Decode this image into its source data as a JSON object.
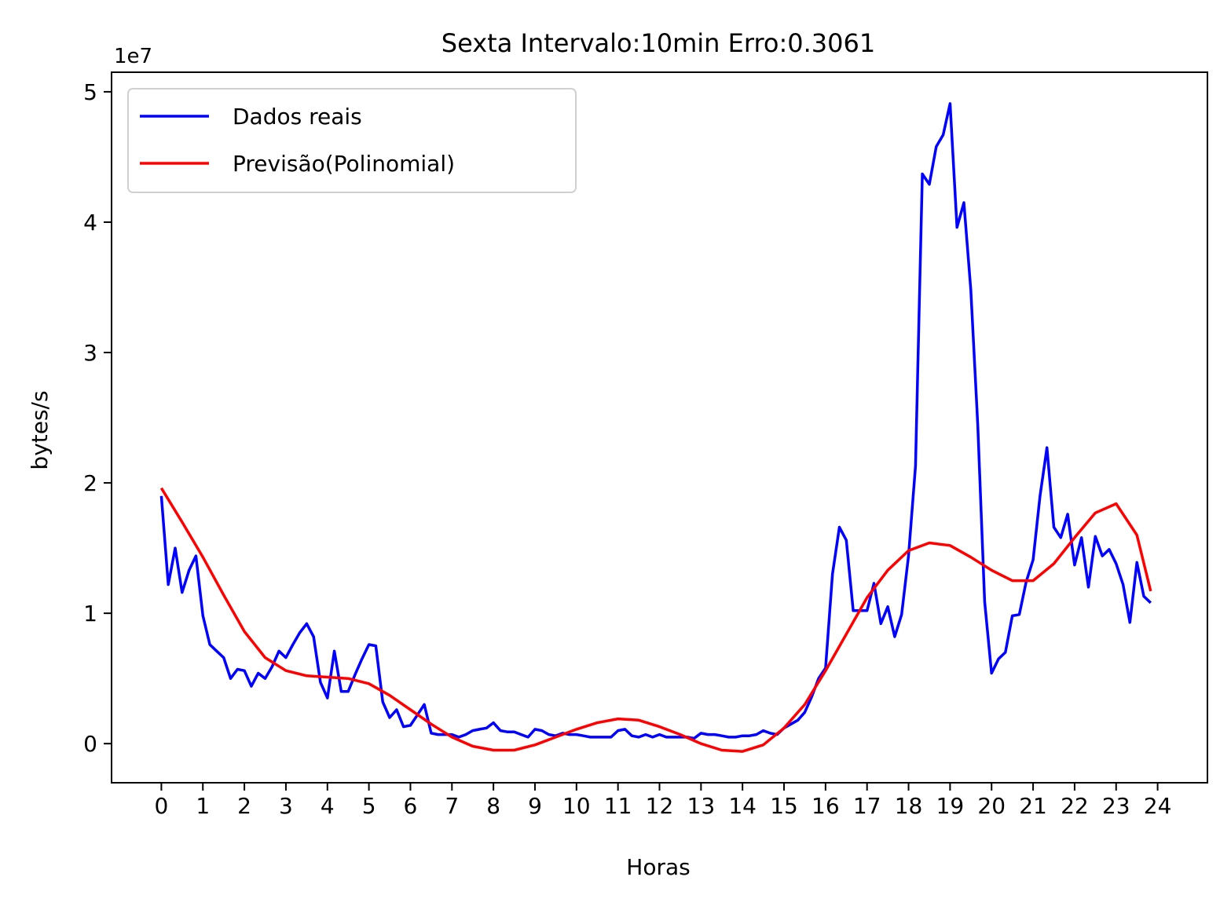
{
  "chart_data": {
    "type": "line",
    "title": "Sexta Intervalo:10min Erro:0.3061",
    "xlabel": "Horas",
    "ylabel": "bytes/s",
    "y_offset_label": "1e7",
    "xlim": [
      -1.2,
      25.2
    ],
    "ylim": [
      -3000000,
      51500000
    ],
    "xticks": [
      0,
      1,
      2,
      3,
      4,
      5,
      6,
      7,
      8,
      9,
      10,
      11,
      12,
      13,
      14,
      15,
      16,
      17,
      18,
      19,
      20,
      21,
      22,
      23,
      24
    ],
    "xtick_labels": [
      "0",
      "1",
      "2",
      "3",
      "4",
      "5",
      "6",
      "7",
      "8",
      "9",
      "10",
      "11",
      "12",
      "13",
      "14",
      "15",
      "16",
      "17",
      "18",
      "19",
      "20",
      "21",
      "22",
      "23",
      "24"
    ],
    "yticks": [
      0,
      10000000,
      20000000,
      30000000,
      40000000,
      50000000
    ],
    "ytick_labels": [
      "0",
      "1",
      "2",
      "3",
      "4",
      "5"
    ],
    "legend_position": "upper-left",
    "series": [
      {
        "name": "Dados reais",
        "color": "#0000ff",
        "x": [
          0,
          0.167,
          0.333,
          0.5,
          0.667,
          0.833,
          1,
          1.167,
          1.333,
          1.5,
          1.667,
          1.833,
          2,
          2.167,
          2.333,
          2.5,
          2.667,
          2.833,
          3,
          3.167,
          3.333,
          3.5,
          3.667,
          3.833,
          4,
          4.167,
          4.333,
          4.5,
          4.667,
          4.833,
          5,
          5.167,
          5.333,
          5.5,
          5.667,
          5.833,
          6,
          6.167,
          6.333,
          6.5,
          6.667,
          6.833,
          7,
          7.167,
          7.333,
          7.5,
          7.667,
          7.833,
          8,
          8.167,
          8.333,
          8.5,
          8.667,
          8.833,
          9,
          9.167,
          9.333,
          9.5,
          9.667,
          9.833,
          10,
          10.167,
          10.333,
          10.5,
          10.667,
          10.833,
          11,
          11.167,
          11.333,
          11.5,
          11.667,
          11.833,
          12,
          12.167,
          12.333,
          12.5,
          12.667,
          12.833,
          13,
          13.167,
          13.333,
          13.5,
          13.667,
          13.833,
          14,
          14.167,
          14.333,
          14.5,
          14.667,
          14.833,
          15,
          15.167,
          15.333,
          15.5,
          15.667,
          15.833,
          16,
          16.167,
          16.333,
          16.5,
          16.667,
          16.833,
          17,
          17.167,
          17.333,
          17.5,
          17.667,
          17.833,
          18,
          18.167,
          18.333,
          18.5,
          18.667,
          18.833,
          19,
          19.167,
          19.333,
          19.5,
          19.667,
          19.833,
          20,
          20.167,
          20.333,
          20.5,
          20.667,
          20.833,
          21,
          21.167,
          21.333,
          21.5,
          21.667,
          21.833,
          22,
          22.167,
          22.333,
          22.5,
          22.667,
          22.833,
          23,
          23.167,
          23.333,
          23.5,
          23.667,
          23.833
        ],
        "y": [
          19000000,
          12200000,
          15000000,
          11600000,
          13300000,
          14400000,
          9800000,
          7600000,
          7100000,
          6600000,
          5000000,
          5700000,
          5600000,
          4400000,
          5400000,
          5000000,
          5900000,
          7100000,
          6600000,
          7600000,
          8500000,
          9200000,
          8200000,
          4700000,
          3500000,
          7100000,
          4000000,
          4000000,
          5300000,
          6500000,
          7600000,
          7500000,
          3200000,
          2000000,
          2600000,
          1300000,
          1400000,
          2200000,
          3000000,
          800000,
          700000,
          700000,
          700000,
          500000,
          700000,
          1000000,
          1100000,
          1200000,
          1600000,
          1000000,
          900000,
          900000,
          700000,
          500000,
          1100000,
          1000000,
          700000,
          600000,
          800000,
          700000,
          700000,
          600000,
          500000,
          500000,
          500000,
          500000,
          1000000,
          1100000,
          600000,
          500000,
          700000,
          500000,
          700000,
          500000,
          500000,
          500000,
          500000,
          400000,
          800000,
          700000,
          700000,
          600000,
          500000,
          500000,
          600000,
          600000,
          700000,
          1000000,
          800000,
          700000,
          1200000,
          1500000,
          1800000,
          2400000,
          3600000,
          5000000,
          5800000,
          13000000,
          16600000,
          15600000,
          10200000,
          10200000,
          10200000,
          12300000,
          9200000,
          10500000,
          8200000,
          9900000,
          14400000,
          21300000,
          43700000,
          42900000,
          45800000,
          46700000,
          49100000,
          39600000,
          41500000,
          34800000,
          24500000,
          10900000,
          5400000,
          6500000,
          7000000,
          9800000,
          9900000,
          12400000,
          14100000,
          19000000,
          22700000,
          16600000,
          15800000,
          17600000,
          13700000,
          15800000,
          12000000,
          15900000,
          14400000,
          14900000,
          13800000,
          12200000,
          9300000,
          13900000,
          11300000,
          10800000
        ]
      },
      {
        "name": "Previsão(Polinomial)",
        "color": "#ff0000",
        "x": [
          0,
          0.5,
          1,
          1.5,
          2,
          2.5,
          3,
          3.5,
          4,
          4.5,
          5,
          5.5,
          6,
          6.5,
          7,
          7.5,
          8,
          8.5,
          9,
          9.5,
          10,
          10.5,
          11,
          11.5,
          12,
          12.5,
          13,
          13.5,
          14,
          14.5,
          15,
          15.5,
          16,
          16.5,
          17,
          17.5,
          18,
          18.5,
          19,
          19.5,
          20,
          20.5,
          21,
          21.5,
          22,
          22.5,
          23,
          23.5,
          23.833
        ],
        "y": [
          19600000,
          17000000,
          14300000,
          11400000,
          8600000,
          6600000,
          5600000,
          5200000,
          5100000,
          5000000,
          4600000,
          3700000,
          2600000,
          1500000,
          500000,
          -200000,
          -500000,
          -500000,
          -100000,
          500000,
          1100000,
          1600000,
          1900000,
          1800000,
          1300000,
          700000,
          0,
          -500000,
          -600000,
          -100000,
          1200000,
          3000000,
          5600000,
          8400000,
          11200000,
          13300000,
          14800000,
          15400000,
          15200000,
          14300000,
          13300000,
          12500000,
          12500000,
          13800000,
          15800000,
          17700000,
          18400000,
          16000000,
          11700000
        ]
      }
    ]
  }
}
